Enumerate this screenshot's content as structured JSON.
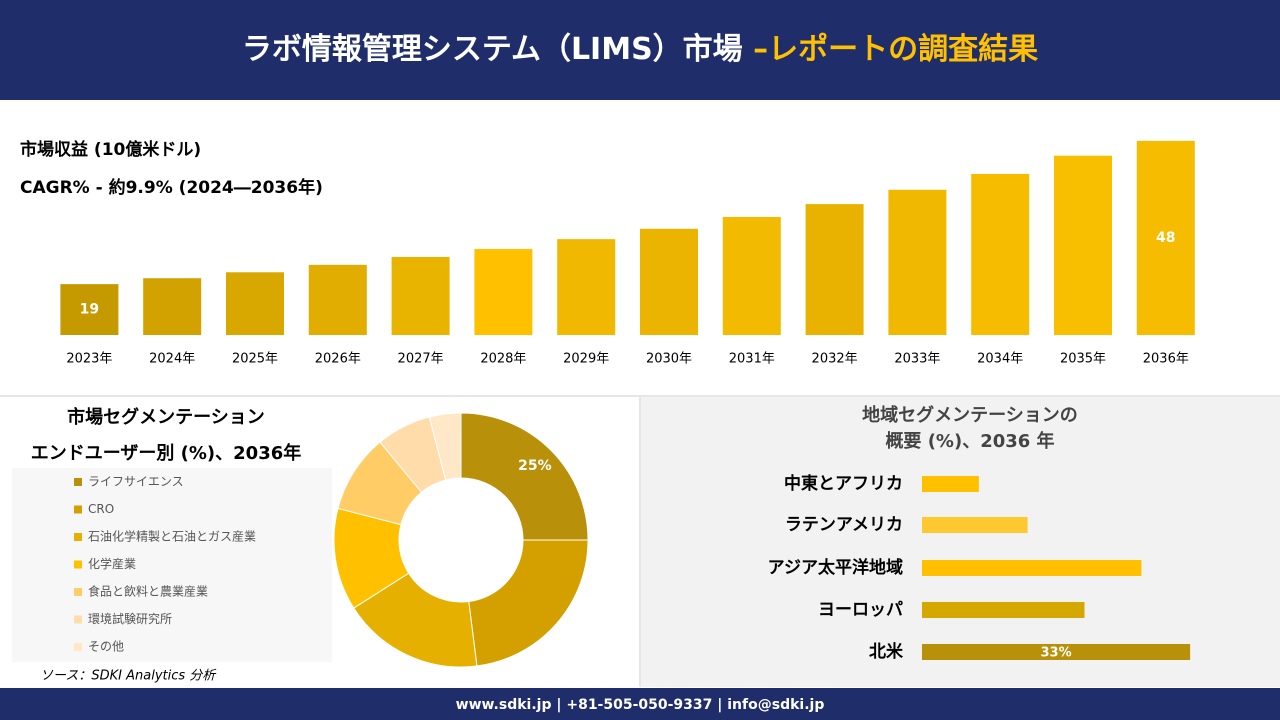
{
  "header": {
    "title": "ラボ情報管理システム（LIMS）市場 ",
    "title_highlight": "–レポートの調査結果"
  },
  "chart_data": [
    {
      "type": "bar",
      "title": "市場収益 (10億米ドル)",
      "subtitle": "CAGR% - 約9.9% (2024―2036年)",
      "categories": [
        "2023年",
        "2024年",
        "2025年",
        "2026年",
        "2027年",
        "2028年",
        "2029年",
        "2030年",
        "2031年",
        "2032年",
        "2033年",
        "2034年",
        "2035年",
        "2036年"
      ],
      "values": [
        19,
        20.2,
        21.4,
        22.9,
        24.5,
        26.1,
        28.1,
        30.2,
        32.6,
        35.2,
        38.1,
        41.3,
        45.0,
        48
      ],
      "value_labels": [
        "19",
        null,
        null,
        null,
        null,
        null,
        null,
        null,
        null,
        null,
        null,
        null,
        null,
        "48"
      ],
      "colors": [
        "#c49a00",
        "#d2a200",
        "#d8a800",
        "#e0ad00",
        "#e8b400",
        "#ffc000",
        "#f0b800",
        "#ebb400",
        "#f2ba00",
        "#eab200",
        "#f0b800",
        "#f5bc00",
        "#f8be00",
        "#f5bc00"
      ],
      "ylim": [
        8.7,
        50
      ]
    },
    {
      "type": "donut",
      "title": "市場セグメンテーション",
      "subtitle": "エンドユーザー別 (%)、2036年",
      "categories": [
        "ライフサイエンス",
        "CRO",
        "石油化学精製と石油とガス産業",
        "化学産業",
        "食品と飲料と農業産業",
        "環境試験研究所",
        "その他"
      ],
      "values": [
        25,
        23,
        18,
        13,
        10,
        7,
        4
      ],
      "value_labels": [
        "25%",
        null,
        null,
        null,
        null,
        null,
        null
      ],
      "colors": [
        "#b8900a",
        "#d4a000",
        "#e6b000",
        "#ffc000",
        "#ffcc66",
        "#ffdcaa",
        "#ffe8c8"
      ]
    },
    {
      "type": "hbar",
      "title": "地域セグメンテーションの",
      "subtitle": "概要 (%)、2036 年",
      "categories": [
        "中東とアフリカ",
        "ラテンアメリカ",
        "アジア太平洋地域",
        "ヨーロッパ",
        "北米"
      ],
      "values": [
        7,
        13,
        27,
        20,
        33
      ],
      "value_labels": [
        null,
        null,
        null,
        null,
        "33%"
      ],
      "colors": [
        "#ffc000",
        "#ffc830",
        "#ffc000",
        "#d4a800",
        "#b8900a"
      ],
      "xlim": [
        0,
        40
      ]
    }
  ],
  "source": "ソース：SDKI Analytics 分析",
  "footer": "www.sdki.jp | +81-505-050-9337 | info@sdki.jp"
}
